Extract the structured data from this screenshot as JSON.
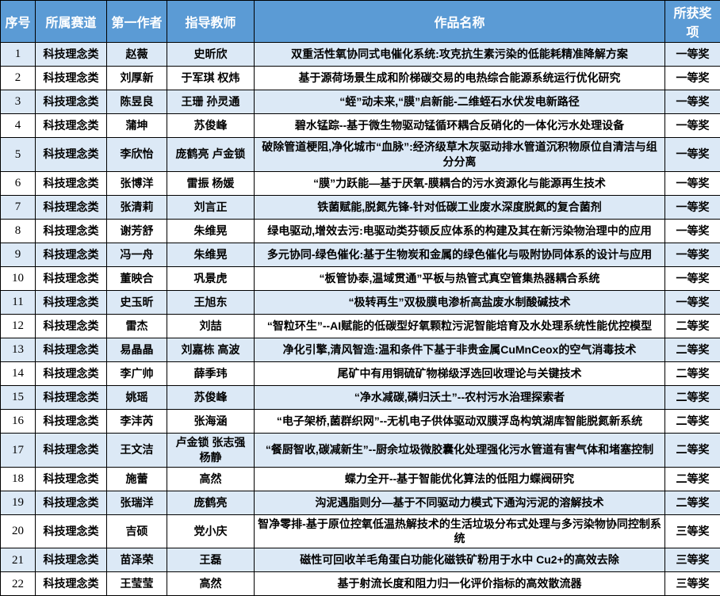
{
  "colors": {
    "header_bg": "#5b9bd5",
    "band_bg": "#dce9f6",
    "border": "#000000",
    "header_text": "#ffffff"
  },
  "table": {
    "headers": [
      "序号",
      "所属赛道",
      "第一作者",
      "指导教师",
      "作品名称",
      "所获奖项"
    ],
    "rows": [
      {
        "no": "1",
        "track": "科技理念类",
        "author": "赵薇",
        "advisors": "史昕欣",
        "title": "双重活性氧协同式电催化系统:攻克抗生素污染的低能耗精准降解方案",
        "award": "一等奖"
      },
      {
        "no": "2",
        "track": "科技理念类",
        "author": "刘厚新",
        "advisors": "于军琪 权炜",
        "title": "基于源荷场景生成和阶梯碳交易的电热综合能源系统运行优化研究",
        "award": "一等奖"
      },
      {
        "no": "3",
        "track": "科技理念类",
        "author": "陈昱良",
        "advisors": "王珊 孙灵通",
        "title": "“蛭”动未来,“膜”启新能-二维蛭石水伏发电新路径",
        "award": "一等奖"
      },
      {
        "no": "4",
        "track": "科技理念类",
        "author": "蒲坤",
        "advisors": "苏俊峰",
        "title": "碧水锰踪--基于微生物驱动锰循环耦合反硝化的一体化污水处理设备",
        "award": "一等奖"
      },
      {
        "no": "5",
        "track": "科技理念类",
        "author": "李欣怡",
        "advisors": "庞鹤亮 卢金锁",
        "title": "破除管道梗阻,净化城市“血脉”:经济级草木灰驱动排水管道沉积物原位自清洁与组分分离",
        "award": "一等奖"
      },
      {
        "no": "6",
        "track": "科技理念类",
        "author": "张博洋",
        "advisors": "雷振 杨媛",
        "title": "“膜”力跃能—基于厌氧-膜耦合的污水资源化与能源再生技术",
        "award": "一等奖"
      },
      {
        "no": "7",
        "track": "科技理念类",
        "author": "张清莉",
        "advisors": "刘言正",
        "title": "铁菌赋能,脱氮先锋-针对低碳工业废水深度脱氮的复合菌剂",
        "award": "一等奖"
      },
      {
        "no": "8",
        "track": "科技理念类",
        "author": "谢芳舒",
        "advisors": "朱维晃",
        "title": "绿电驱动,增效去污:电驱动类芬顿反应体系的构建及其在新污染物治理中的应用",
        "award": "一等奖"
      },
      {
        "no": "9",
        "track": "科技理念类",
        "author": "冯一舟",
        "advisors": "朱维晃",
        "title": "多元协同-绿色催化:基于生物炭和金属的绿色催化与吸附协同体系的设计与应用",
        "award": "一等奖"
      },
      {
        "no": "10",
        "track": "科技理念类",
        "author": "董映合",
        "advisors": "巩景虎",
        "title": "“板管协泰,温域贯通”平板与热管式真空管集热器耦合系统",
        "award": "一等奖"
      },
      {
        "no": "11",
        "track": "科技理念类",
        "author": "史玉昕",
        "advisors": "王旭东",
        "title": "“极转再生”双极膜电渗析高盐废水制酸碱技术",
        "award": "一等奖"
      },
      {
        "no": "12",
        "track": "科技理念类",
        "author": "雷杰",
        "advisors": "刘喆",
        "title": "“智粒环生”--AI赋能的低碳型好氧颗粒污泥智能培育及水处理系统性能优控模型",
        "award": "二等奖"
      },
      {
        "no": "13",
        "track": "科技理念类",
        "author": "易晶晶",
        "advisors": "刘嘉栋 高波",
        "title": "净化引擎,清风智造:温和条件下基于非贵金属CuMnCeox的空气消毒技术",
        "award": "二等奖"
      },
      {
        "no": "14",
        "track": "科技理念类",
        "author": "李广帅",
        "advisors": "薛季玮",
        "title": "尾矿中有用铜硫矿物梯级浮选回收理论与关键技术",
        "award": "二等奖"
      },
      {
        "no": "15",
        "track": "科技理念类",
        "author": "姚瑶",
        "advisors": "苏俊峰",
        "title": "“净水减碳,磷归沃土”--农村污水治理探索者",
        "award": "二等奖"
      },
      {
        "no": "16",
        "track": "科技理念类",
        "author": "李沣芮",
        "advisors": "张海涵",
        "title": "“电子架桥,菌群织网”--无机电子供体驱动双膜浮岛构筑湖库智能脱氮新系统",
        "award": "二等奖"
      },
      {
        "no": "17",
        "track": "科技理念类",
        "author": "王文洁",
        "advisors": "卢金锁 张志强 杨静",
        "title": "“餐厨智收,碳减新生”--厨余垃圾微胶囊化处理强化污水管道有害气体和堵塞控制",
        "award": "二等奖"
      },
      {
        "no": "18",
        "track": "科技理念类",
        "author": "施蕾",
        "advisors": "高然",
        "title": "蝶力全开--基于智能优化算法的低阻力蝶阀研究",
        "award": "二等奖"
      },
      {
        "no": "19",
        "track": "科技理念类",
        "author": "张瑞洋",
        "advisors": "庞鹤亮",
        "title": "沟泥遇脂则分—基于不同驱动力模式下通沟污泥的溶解技术",
        "award": "二等奖"
      },
      {
        "no": "20",
        "track": "科技理念类",
        "author": "吉硕",
        "advisors": "党小庆",
        "title": "智净零排-基于原位控氧低温热解技术的生活垃圾分布式处理与多污染物协同控制系统",
        "award": "三等奖"
      },
      {
        "no": "21",
        "track": "科技理念类",
        "author": "苗泽荣",
        "advisors": "王磊",
        "title": "磁性可回收羊毛角蛋白功能化磁铁矿粉用于水中 Cu2+的高效去除",
        "award": "三等奖"
      },
      {
        "no": "22",
        "track": "科技理念类",
        "author": "王莹莹",
        "advisors": "高然",
        "title": "基于射流长度和阻力归一化评价指标的高效散流器",
        "award": "三等奖"
      }
    ]
  }
}
